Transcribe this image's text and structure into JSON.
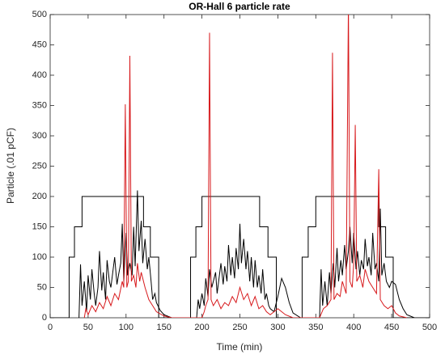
{
  "chart_data": {
    "type": "line",
    "title": "OR-Hall 6 particle rate",
    "x_label": "Time (min)",
    "y_label": "Particle (.01 pCF)",
    "xlim": [
      0,
      500
    ],
    "ylim": [
      0,
      500
    ],
    "xticks": [
      0,
      50,
      100,
      150,
      200,
      250,
      300,
      350,
      400,
      450,
      500
    ],
    "yticks": [
      0,
      50,
      100,
      150,
      200,
      250,
      300,
      350,
      400,
      450,
      500
    ],
    "grid": false,
    "series": [
      {
        "color": "#000000",
        "x": [
          0,
          25,
          25,
          32,
          32,
          42,
          42,
          123,
          123,
          132,
          132,
          143,
          143,
          185,
          185,
          192,
          192,
          200,
          200,
          276,
          276,
          287,
          287,
          298,
          298,
          332,
          332,
          340,
          340,
          350,
          350,
          433,
          433,
          442,
          442,
          452,
          452,
          500
        ],
        "values": [
          0,
          0,
          100,
          100,
          150,
          150,
          200,
          200,
          150,
          150,
          100,
          100,
          0,
          0,
          100,
          100,
          150,
          150,
          200,
          200,
          150,
          150,
          100,
          100,
          0,
          0,
          100,
          100,
          150,
          150,
          200,
          200,
          150,
          150,
          100,
          100,
          0,
          0
        ]
      },
      {
        "color": "#000000",
        "x": [
          38,
          40,
          42,
          45,
          48,
          50,
          53,
          55,
          58,
          60,
          63,
          65,
          68,
          70,
          73,
          75,
          78,
          80,
          83,
          85,
          88,
          90,
          93,
          95,
          97,
          100,
          102,
          105,
          108,
          110,
          112,
          115,
          117,
          120,
          122,
          125,
          128,
          130,
          133,
          135,
          138,
          140,
          145,
          150,
          160,
          193,
          195,
          197,
          200,
          203,
          205,
          208,
          210,
          213,
          215,
          218,
          220,
          223,
          225,
          228,
          230,
          233,
          235,
          238,
          240,
          243,
          245,
          248,
          250,
          252,
          255,
          258,
          260,
          263,
          265,
          268,
          270,
          273,
          275,
          278,
          280,
          283,
          285,
          288,
          290,
          295,
          300,
          305,
          310,
          315,
          320,
          330,
          355,
          357,
          359,
          362,
          365,
          368,
          370,
          373,
          375,
          378,
          380,
          383,
          385,
          388,
          390,
          393,
          395,
          398,
          400,
          403,
          405,
          408,
          410,
          413,
          415,
          418,
          420,
          423,
          425,
          428,
          430,
          433,
          435,
          437,
          440,
          443,
          447,
          450,
          455,
          460,
          465,
          470,
          480
        ],
        "values": [
          0,
          88,
          20,
          60,
          10,
          70,
          30,
          80,
          40,
          20,
          50,
          110,
          45,
          75,
          30,
          95,
          60,
          50,
          80,
          100,
          55,
          70,
          90,
          155,
          60,
          140,
          70,
          90,
          70,
          150,
          85,
          210,
          110,
          160,
          90,
          130,
          80,
          100,
          60,
          30,
          40,
          25,
          12,
          5,
          0,
          0,
          30,
          15,
          40,
          20,
          65,
          35,
          80,
          50,
          60,
          75,
          40,
          70,
          90,
          55,
          85,
          60,
          120,
          70,
          100,
          65,
          115,
          80,
          155,
          90,
          130,
          80,
          110,
          60,
          100,
          50,
          95,
          50,
          70,
          40,
          80,
          30,
          40,
          20,
          15,
          10,
          35,
          65,
          50,
          25,
          8,
          0,
          0,
          80,
          20,
          60,
          20,
          75,
          40,
          90,
          50,
          115,
          60,
          95,
          70,
          120,
          80,
          110,
          150,
          90,
          140,
          80,
          110,
          70,
          95,
          80,
          130,
          85,
          100,
          70,
          140,
          80,
          90,
          60,
          180,
          70,
          90,
          60,
          50,
          60,
          55,
          30,
          15,
          5,
          0
        ]
      },
      {
        "color": "#d7191c",
        "x": [
          45,
          47,
          50,
          55,
          60,
          65,
          70,
          75,
          80,
          85,
          90,
          95,
          97,
          99,
          101,
          103,
          105,
          107,
          110,
          113,
          115,
          118,
          120,
          125,
          130,
          135,
          140,
          150,
          160,
          200,
          203,
          205,
          208,
          210,
          212,
          215,
          220,
          225,
          230,
          235,
          240,
          245,
          250,
          255,
          260,
          265,
          270,
          275,
          280,
          285,
          290,
          300,
          310,
          320,
          355,
          360,
          365,
          370,
          372,
          374,
          378,
          382,
          385,
          390,
          393,
          395,
          398,
          400,
          402,
          404,
          408,
          412,
          415,
          420,
          425,
          430,
          433,
          435,
          440,
          445,
          450,
          455,
          460,
          470
        ],
        "values": [
          0,
          15,
          5,
          20,
          10,
          25,
          15,
          35,
          20,
          40,
          30,
          60,
          50,
          352,
          50,
          60,
          432,
          60,
          70,
          50,
          90,
          60,
          75,
          50,
          30,
          20,
          10,
          3,
          0,
          0,
          10,
          20,
          30,
          470,
          30,
          20,
          30,
          15,
          25,
          20,
          35,
          25,
          50,
          30,
          40,
          20,
          35,
          15,
          20,
          10,
          5,
          15,
          5,
          0,
          0,
          15,
          20,
          30,
          437,
          30,
          40,
          35,
          60,
          40,
          520,
          60,
          50,
          90,
          318,
          60,
          70,
          50,
          80,
          60,
          50,
          40,
          245,
          30,
          20,
          15,
          20,
          8,
          3,
          0
        ]
      }
    ]
  }
}
